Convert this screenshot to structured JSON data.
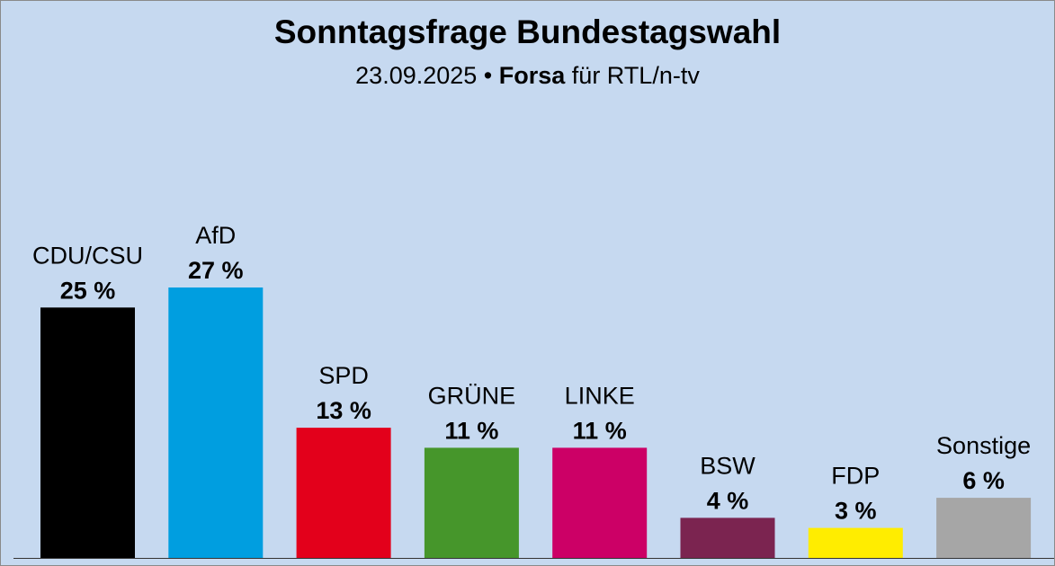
{
  "chart_data": {
    "type": "bar",
    "title": "Sonntagsfrage Bundestagswahl",
    "subtitle": {
      "date": "23.09.2025",
      "separator": " • ",
      "pollster": "Forsa",
      "client": " für RTL/n-tv"
    },
    "categories": [
      "CDU/CSU",
      "AfD",
      "SPD",
      "GRÜNE",
      "LINKE",
      "BSW",
      "FDP",
      "Sonstige"
    ],
    "values": [
      25,
      27,
      13,
      11,
      11,
      4,
      3,
      6
    ],
    "value_labels": [
      "25 %",
      "27 %",
      "13 %",
      "11 %",
      "11 %",
      "4 %",
      "3 %",
      "6 %"
    ],
    "colors": [
      "#000000",
      "#009ee0",
      "#e3001b",
      "#46962b",
      "#cc0066",
      "#7b2450",
      "#ffed00",
      "#a6a6a6"
    ],
    "ylim": [
      0,
      27
    ],
    "grid": false,
    "legend": "none",
    "xlabel": "",
    "ylabel": ""
  }
}
